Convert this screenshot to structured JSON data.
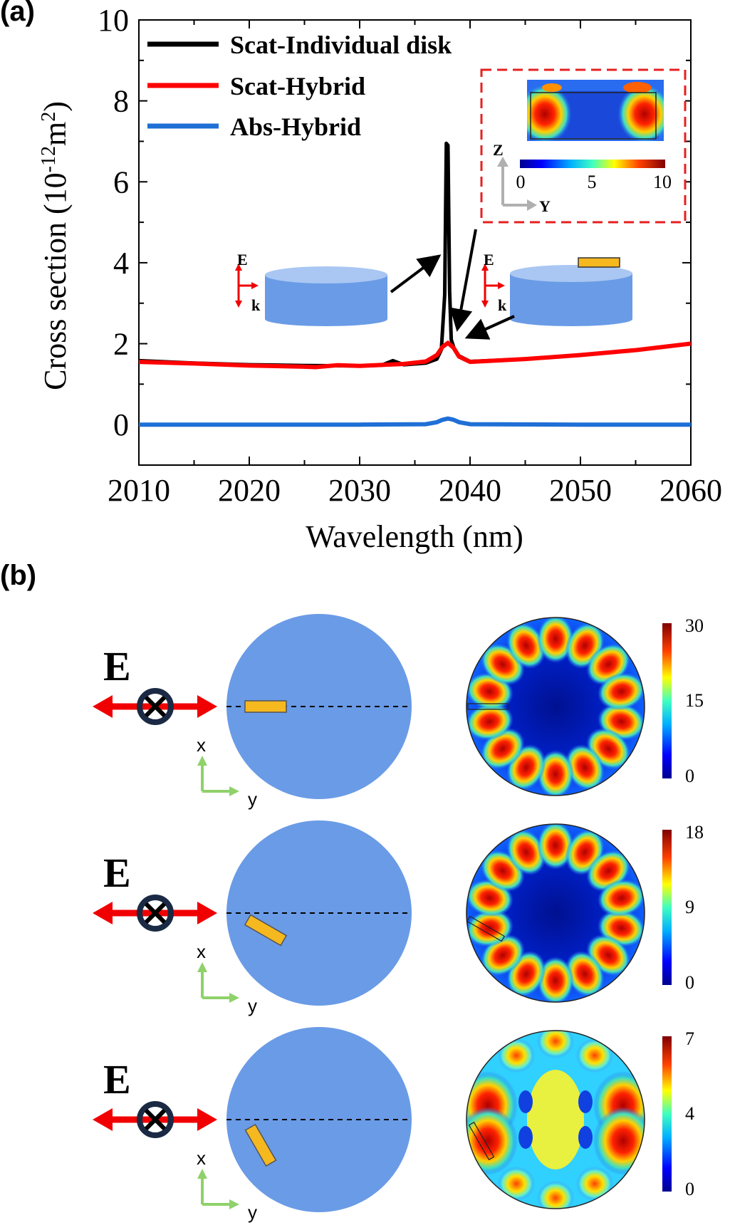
{
  "labels": {
    "panel_a": "(a)",
    "panel_b": "(b)"
  },
  "chart_data": [
    {
      "type": "line",
      "xlabel": "Wavelength (nm)",
      "ylabel_main": "Cross section (10",
      "ylabel_sup1": "-12",
      "ylabel_mid": "m",
      "ylabel_sup2": "2",
      "ylabel_end": ")",
      "xlim": [
        2010,
        2060
      ],
      "ylim": [
        -1,
        10
      ],
      "x_ticks": [
        2010,
        2020,
        2030,
        2040,
        2050,
        2060
      ],
      "y_ticks": [
        0,
        2,
        4,
        6,
        8,
        10
      ],
      "legend_position": "top-left",
      "series": [
        {
          "name": "Scat-Individual disk",
          "color": "#000000",
          "x": [
            2010,
            2015,
            2020,
            2025,
            2030,
            2032,
            2033,
            2034,
            2036,
            2037,
            2037.4,
            2037.7,
            2037.85,
            2038,
            2038.15,
            2038.3,
            2038.6,
            2039,
            2040,
            2045,
            2050,
            2055,
            2060
          ],
          "y": [
            1.58,
            1.52,
            1.48,
            1.46,
            1.45,
            1.47,
            1.58,
            1.48,
            1.52,
            1.62,
            1.85,
            3.2,
            6.95,
            6.9,
            3.3,
            2.1,
            1.85,
            1.7,
            1.56,
            1.62,
            1.72,
            1.84,
            2.0
          ]
        },
        {
          "name": "Scat-Hybrid",
          "color": "#ff0000",
          "x": [
            2010,
            2015,
            2020,
            2025,
            2026,
            2028,
            2030,
            2034,
            2036,
            2037,
            2037.5,
            2038,
            2038.5,
            2039,
            2040,
            2045,
            2050,
            2055,
            2060
          ],
          "y": [
            1.55,
            1.51,
            1.46,
            1.43,
            1.42,
            1.47,
            1.45,
            1.5,
            1.56,
            1.72,
            1.92,
            2.02,
            1.9,
            1.68,
            1.55,
            1.62,
            1.72,
            1.84,
            2.0
          ]
        },
        {
          "name": "Abs-Hybrid",
          "color": "#1f6fd6",
          "x": [
            2010,
            2020,
            2030,
            2036,
            2037,
            2037.5,
            2038,
            2038.5,
            2039,
            2040,
            2050,
            2060
          ],
          "y": [
            0.0,
            0.0,
            0.0,
            0.01,
            0.06,
            0.12,
            0.15,
            0.12,
            0.06,
            0.01,
            0.0,
            0.0
          ]
        }
      ],
      "annotations": {
        "left_inset_E": "E",
        "left_inset_k": "k",
        "right_inset_E": "E",
        "right_inset_k": "k",
        "field_inset_z": "Z",
        "field_inset_y": "Y",
        "field_colorbar_ticks": [
          "0",
          "5",
          "10"
        ]
      }
    },
    {
      "type": "heatmap",
      "rows": [
        {
          "label_E": "E",
          "axis_x": "x",
          "axis_y": "y",
          "rod_angle_deg": 0,
          "colorbar_ticks": [
            "30",
            "15",
            "0"
          ]
        },
        {
          "label_E": "E",
          "axis_x": "x",
          "axis_y": "y",
          "rod_angle_deg": 30,
          "colorbar_ticks": [
            "18",
            "9",
            "0"
          ]
        },
        {
          "label_E": "E",
          "axis_x": "x",
          "axis_y": "y",
          "rod_angle_deg": 60,
          "colorbar_ticks": [
            "7",
            "4",
            "0"
          ]
        }
      ]
    }
  ],
  "colors": {
    "disk": "#6a9be6",
    "disk_top": "#a9c7f2",
    "rod": "#f5b81f",
    "arrow_red": "#f00000",
    "axis_green": "#8fd16a",
    "inset_border": "#e52020"
  }
}
